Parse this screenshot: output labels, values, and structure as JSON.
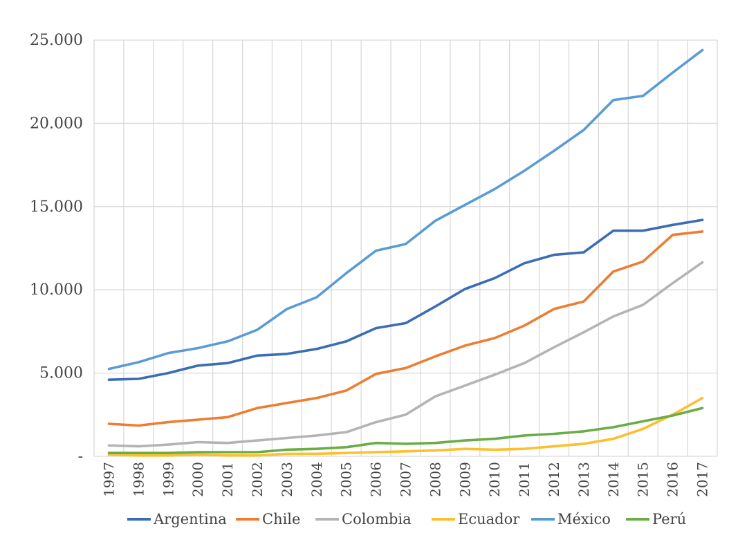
{
  "chart_data": {
    "type": "line",
    "title": "",
    "xlabel": "",
    "ylabel": "",
    "x": [
      "1997",
      "1998",
      "1999",
      "2000",
      "2001",
      "2002",
      "2003",
      "2004",
      "2005",
      "2006",
      "2007",
      "2008",
      "2009",
      "2010",
      "2011",
      "2012",
      "2013",
      "2014",
      "2015",
      "2016",
      "2017"
    ],
    "ylim": [
      0,
      25000
    ],
    "yticks": [
      {
        "value": 0,
        "label": "-"
      },
      {
        "value": 5000,
        "label": "5.000"
      },
      {
        "value": 10000,
        "label": "10.000"
      },
      {
        "value": 15000,
        "label": "15.000"
      },
      {
        "value": 20000,
        "label": "20.000"
      },
      {
        "value": 25000,
        "label": "25.000"
      }
    ],
    "grid": true,
    "legend_position": "bottom",
    "series": [
      {
        "name": "Argentina",
        "color": "#3b6db5",
        "values": [
          4600,
          4650,
          5000,
          5450,
          5600,
          6050,
          6150,
          6450,
          6900,
          7700,
          8000,
          9000,
          10050,
          10700,
          11600,
          12100,
          12250,
          13550,
          13550,
          13900,
          14200
        ]
      },
      {
        "name": "Chile",
        "color": "#ed7d31",
        "values": [
          1950,
          1850,
          2050,
          2200,
          2350,
          2900,
          3200,
          3500,
          3950,
          4950,
          5300,
          6000,
          6650,
          7100,
          7850,
          8850,
          9300,
          11100,
          11700,
          13300,
          13500
        ]
      },
      {
        "name": "Colombia",
        "color": "#b4b4b4",
        "values": [
          650,
          600,
          700,
          850,
          800,
          950,
          1100,
          1250,
          1450,
          2050,
          2500,
          3600,
          4250,
          4900,
          5600,
          6550,
          7450,
          8400,
          9100,
          10400,
          11650
        ]
      },
      {
        "name": "Ecuador",
        "color": "#fdbf2d",
        "values": [
          100,
          50,
          50,
          100,
          50,
          50,
          150,
          150,
          200,
          250,
          300,
          350,
          450,
          400,
          450,
          600,
          750,
          1050,
          1650,
          2500,
          3500
        ]
      },
      {
        "name": "México",
        "color": "#5b9bd5",
        "values": [
          5250,
          5650,
          6200,
          6500,
          6900,
          7600,
          8850,
          9550,
          11000,
          12350,
          12750,
          14150,
          15100,
          16050,
          17150,
          18350,
          19600,
          21400,
          21650,
          23050,
          24400
        ]
      },
      {
        "name": "Perú",
        "color": "#6aac46",
        "values": [
          200,
          200,
          200,
          250,
          250,
          250,
          400,
          450,
          550,
          800,
          750,
          800,
          950,
          1050,
          1250,
          1350,
          1500,
          1750,
          2100,
          2450,
          2900
        ]
      }
    ]
  }
}
